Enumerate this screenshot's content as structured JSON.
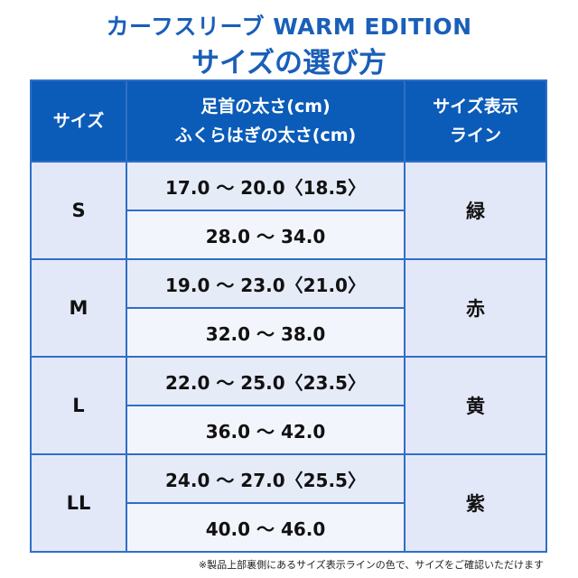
{
  "title": {
    "line1": "カーフスリーブ WARM EDITION",
    "line2": "サイズの選び方"
  },
  "header": {
    "size": "サイズ",
    "measure_line1": "足首の太さ(cm)",
    "measure_line2": "ふくらはぎの太さ(cm)",
    "line_line1": "サイズ表示",
    "line_line2": "ライン"
  },
  "rows": [
    {
      "size": "S",
      "ankle": "17.0 〜 20.0〈18.5〉",
      "calf": "28.0 〜 34.0",
      "color": "緑"
    },
    {
      "size": "M",
      "ankle": "19.0 〜 23.0〈21.0〉",
      "calf": "32.0 〜 38.0",
      "color": "赤"
    },
    {
      "size": "L",
      "ankle": "22.0 〜 25.0〈23.5〉",
      "calf": "36.0 〜 42.0",
      "color": "黄"
    },
    {
      "size": "LL",
      "ankle": "24.0 〜 27.0〈25.5〉",
      "calf": "40.0 〜 46.0",
      "color": "紫"
    }
  ],
  "note": "※製品上部裏側にあるサイズ表示ラインの色で、サイズをご確認いただけます",
  "colors": {
    "accent": "#0b5cb8"
  }
}
